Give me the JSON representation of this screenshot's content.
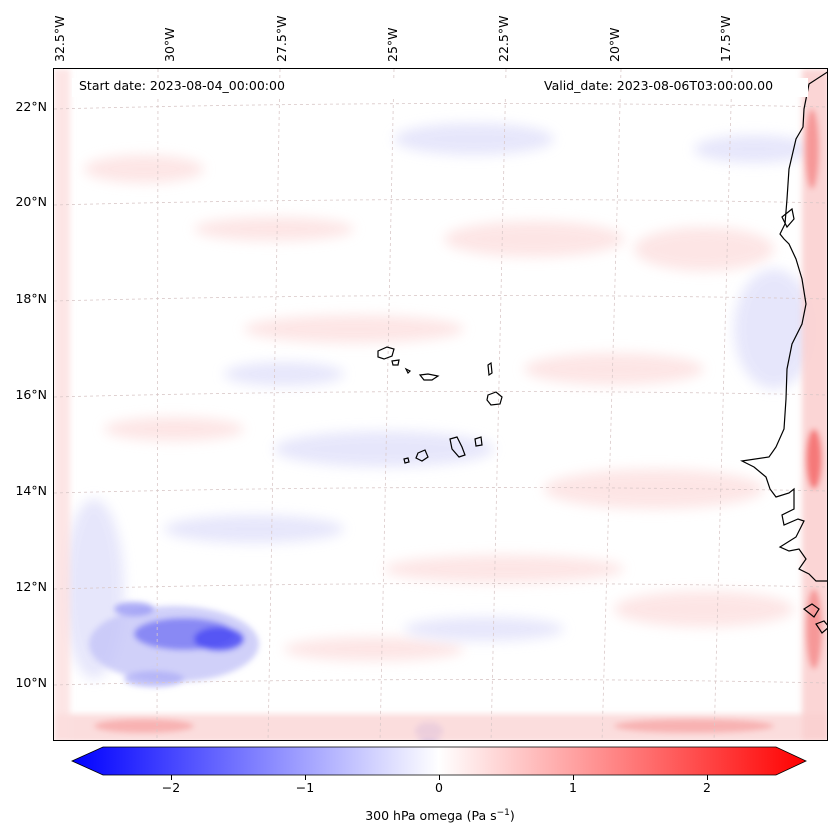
{
  "map": {
    "start_date_label": "Start date: 2023-08-04_00:00:00",
    "valid_date_label": "Valid_date: 2023-08-06T03:00:00.00",
    "lon_labels": [
      "32.5°W",
      "30°W",
      "27.5°W",
      "25°W",
      "22.5°W",
      "20°W",
      "17.5°W"
    ],
    "lat_labels": [
      "22°N",
      "20°N",
      "18°N",
      "16°N",
      "14°N",
      "12°N",
      "10°N"
    ],
    "colorbar": {
      "label_prefix": "300 hPa omega (Pa s",
      "label_sup": "−1",
      "label_suffix": ")",
      "ticks": [
        "−2",
        "−1",
        "0",
        "1",
        "2"
      ],
      "tick_values": [
        -2,
        -1,
        0,
        1,
        2
      ],
      "range": [
        -2.5,
        2.5
      ],
      "min_color": "#0000ff",
      "mid_color": "#ffffff",
      "max_color": "#ff0000"
    },
    "colors": {
      "coast": "#000000",
      "grid": "#d9c8c8",
      "weak_positive": "#fde3e3",
      "weak_negative": "#e6e6fb",
      "strong_negative": "#4d4df5",
      "strong_positive": "#f86a6a"
    }
  }
}
